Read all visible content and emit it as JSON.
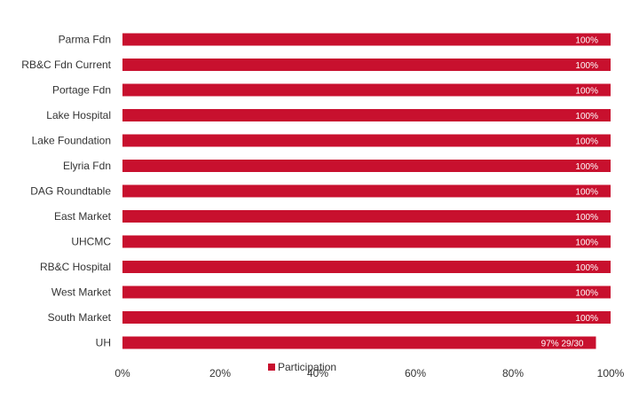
{
  "chart_data": {
    "type": "bar",
    "orientation": "horizontal",
    "title": "",
    "xlabel": "",
    "ylabel": "",
    "categories": [
      "Parma Fdn",
      "RB&C Fdn Current",
      "Portage Fdn",
      "Lake Hospital",
      "Lake Foundation",
      "Elyria Fdn",
      "DAG Roundtable",
      "East Market",
      "UHCMC",
      "RB&C Hospital",
      "West Market",
      "South Market",
      "UH"
    ],
    "series": [
      {
        "name": "Participation",
        "color": "#C8102E",
        "values": [
          100,
          100,
          100,
          100,
          100,
          100,
          100,
          100,
          100,
          100,
          100,
          100,
          97
        ],
        "data_labels": [
          "100%",
          "100%",
          "100%",
          "100%",
          "100%",
          "100%",
          "100%",
          "100%",
          "100%",
          "100%",
          "100%",
          "100%",
          "97% 29/30"
        ]
      }
    ],
    "xlim": [
      0,
      100
    ],
    "x_ticks": [
      0,
      20,
      40,
      60,
      80,
      100
    ],
    "x_tick_labels": [
      "0%",
      "20%",
      "40%",
      "60%",
      "80%",
      "100%"
    ],
    "grid": false,
    "legend": {
      "position": "bottom",
      "entries": [
        "Participation"
      ]
    }
  }
}
